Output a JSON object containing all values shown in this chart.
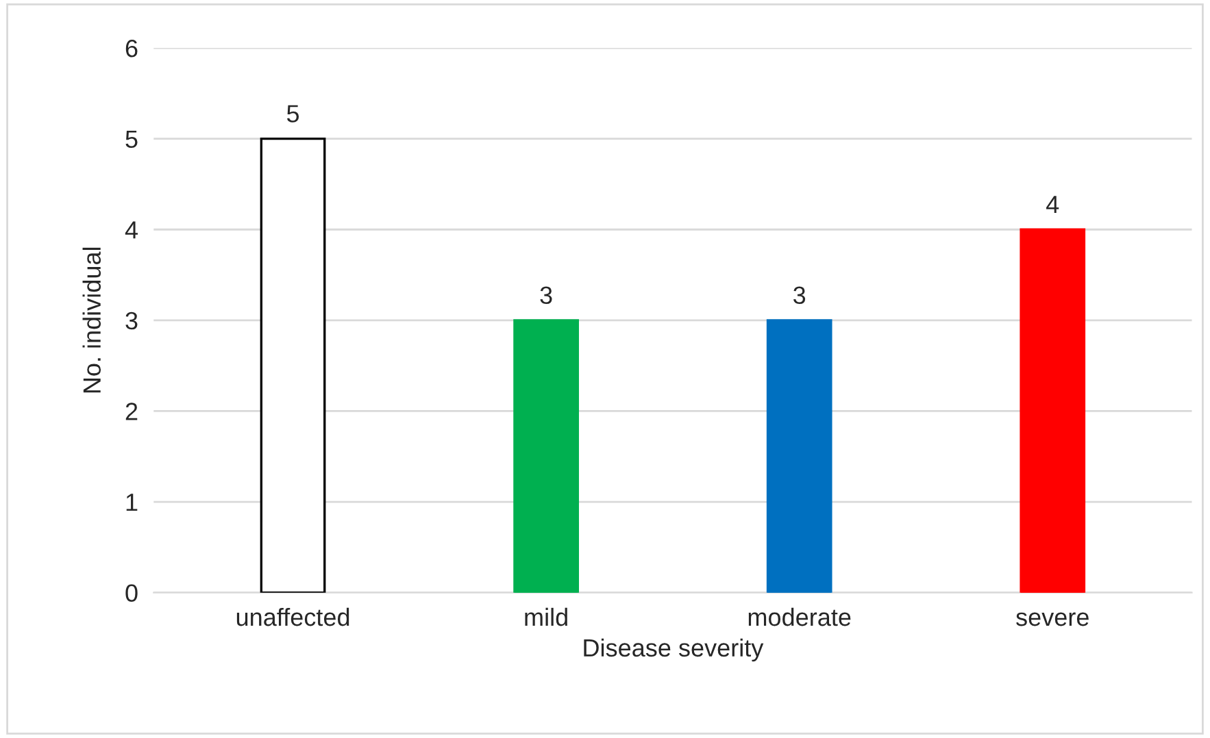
{
  "chart_data": {
    "type": "bar",
    "xlabel": "Disease severity",
    "ylabel": "No. individual",
    "categories": [
      "unaffected",
      "mild",
      "moderate",
      "severe"
    ],
    "values": [
      5,
      3,
      3,
      4
    ],
    "colors": [
      "#ffffff",
      "#00b050",
      "#0070c0",
      "#ff0000"
    ],
    "ylim": [
      0,
      6
    ],
    "yticks": [
      0,
      1,
      2,
      3,
      4,
      5,
      6
    ],
    "grid": "y",
    "data_labels": true,
    "legend": false
  }
}
